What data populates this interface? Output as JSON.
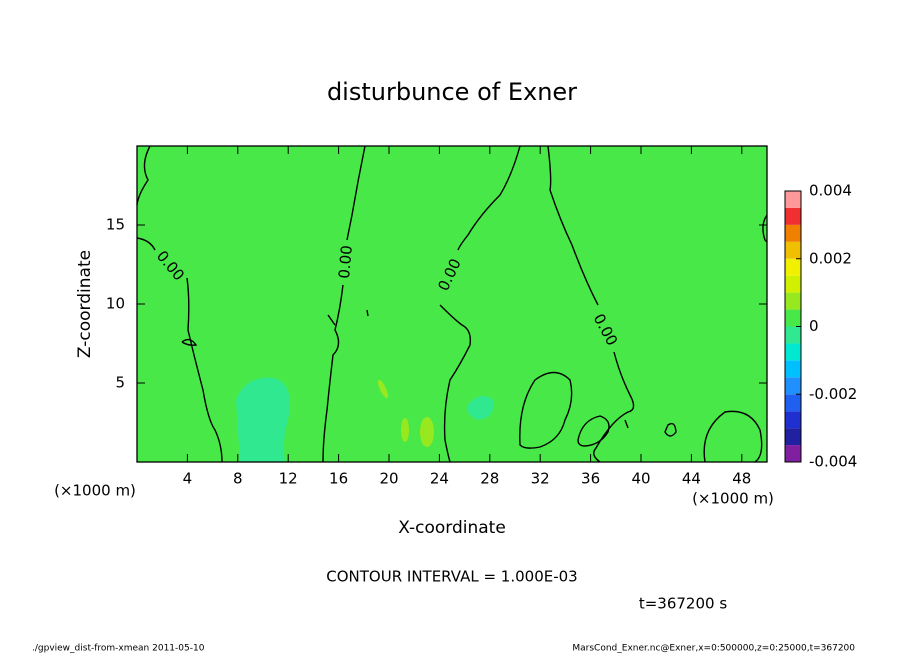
{
  "chart_data": {
    "type": "contour",
    "title": "disturbunce of Exner",
    "xlabel": "X-coordinate",
    "ylabel": "Z-coordinate",
    "axis_unit": "(×1000 m)",
    "xlim": [
      0,
      50
    ],
    "ylim": [
      0,
      20
    ],
    "xticks": [
      4,
      8,
      12,
      16,
      20,
      24,
      28,
      32,
      36,
      40,
      44,
      48
    ],
    "yticks": [
      5,
      10,
      15
    ],
    "contour_labels": [
      "0.00",
      "0.00",
      "0.00",
      "0.00"
    ],
    "colorbar": {
      "bounds": [
        -0.004,
        -0.0035,
        -0.003,
        -0.0025,
        -0.002,
        -0.0015,
        -0.001,
        -0.0005,
        0,
        0.0005,
        0.001,
        0.0015,
        0.002,
        0.0025,
        0.003,
        0.0035,
        0.004
      ],
      "colors": [
        "#8020a0",
        "#2020a0",
        "#2030d0",
        "#2060f0",
        "#2090ff",
        "#00c0ff",
        "#00e8d0",
        "#30e890",
        "#48e848",
        "#98e820",
        "#d0f000",
        "#f0f000",
        "#f0c000",
        "#f08000",
        "#f03030",
        "#ff9898"
      ],
      "ticks": [
        0.004,
        0.002,
        0,
        -0.002,
        -0.004
      ]
    },
    "annotations": {
      "contour_interval": "CONTOUR INTERVAL = 1.000E-03",
      "time": "t=367200 s",
      "footer_left": "./gpview_dist-from-xmean  2011-05-10",
      "footer_right": "MarsCond_Exner.nc@Exner,x=0:500000,z=0:25000,t=367200"
    }
  }
}
